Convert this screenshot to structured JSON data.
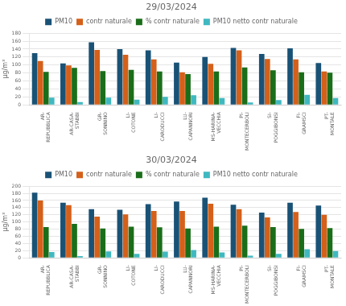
{
  "chart_data": [
    {
      "type": "bar",
      "title": "29/03/2024",
      "categories": [
        "AR-\nREPUBBLICA",
        "AR-CASA-\nSTABBI",
        "GR-\nSONNINO",
        "LI-\nCOTONE",
        "LI-\nCARODUCCI",
        "LU-\nCAPANNORI",
        "MS-HARINA-\nVECCHIA",
        "PI-\nMONTECERBOLI",
        "SI-\nPOGGIBONSI",
        "FI-\nGRAMSCI",
        "PT-\nMONTALE"
      ],
      "series": [
        {
          "name": "PM10",
          "color": "#1a5276",
          "values": [
            130,
            104,
            157,
            140,
            137,
            106,
            120,
            143,
            128,
            142,
            105
          ]
        },
        {
          "name": "contr naturale",
          "color": "#d4601a",
          "values": [
            110,
            99,
            138,
            126,
            114,
            82,
            103,
            137,
            115,
            114,
            84
          ]
        },
        {
          "name": "% contr naturale",
          "color": "#1a6e1a",
          "values": [
            83,
            93,
            85,
            88,
            84,
            77,
            84,
            94,
            87,
            82,
            81
          ]
        },
        {
          "name": "PM10 netto contr naturale",
          "color": "#40b8c0",
          "values": [
            18,
            7,
            18,
            13,
            20,
            24,
            17,
            6,
            12,
            25,
            17
          ]
        }
      ],
      "ylabel": "μg/m³",
      "ylim": [
        0,
        180
      ],
      "yticks": [
        0,
        20,
        40,
        60,
        80,
        100,
        120,
        140,
        160,
        180
      ],
      "grid": true,
      "legend": "top"
    },
    {
      "type": "bar",
      "title": "30/03/2024",
      "categories": [
        "AR-\nREPUBBLICA",
        "AR-CASA-\nSTABBI",
        "GR-\nSONNINO",
        "LI-\nCOTONE",
        "LI-\nCARODUCCI",
        "LU-\nCAPANNORI",
        "MS-HARINA-\nVECCHIA",
        "PI-\nMONTECERBOLI",
        "SI-\nPOGGIBONSI",
        "FI-\nGRAMSCI",
        "PT-\nMONTALE"
      ],
      "series": [
        {
          "name": "PM10",
          "color": "#1a5276",
          "values": [
            182,
            154,
            136,
            134,
            150,
            157,
            168,
            148,
            126,
            154,
            146
          ]
        },
        {
          "name": "contr naturale",
          "color": "#d4601a",
          "values": [
            160,
            147,
            115,
            121,
            131,
            131,
            151,
            136,
            113,
            128,
            120
          ]
        },
        {
          "name": "% contr naturale",
          "color": "#1a6e1a",
          "values": [
            86,
            95,
            82,
            87,
            85,
            82,
            87,
            90,
            86,
            81,
            83
          ]
        },
        {
          "name": "PM10 netto contr naturale",
          "color": "#40b8c0",
          "values": [
            16,
            5,
            18,
            11,
            17,
            22,
            15,
            6,
            11,
            24,
            19
          ]
        }
      ],
      "ylabel": "μg/m³",
      "ylim": [
        0,
        200
      ],
      "yticks": [
        0,
        20,
        40,
        60,
        80,
        100,
        120,
        140,
        160,
        180,
        200
      ],
      "grid": true,
      "legend": "top"
    }
  ]
}
